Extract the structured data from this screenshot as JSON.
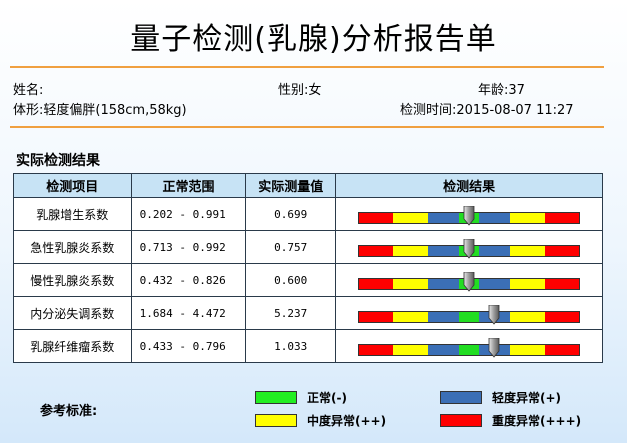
{
  "report": {
    "title": "量子检测(乳腺)分析报告单"
  },
  "patient": {
    "name_label": "姓名:",
    "name_value": "",
    "sex_label": "性别:",
    "sex_value": "女",
    "age_label": "年龄:",
    "age_value": "37",
    "body_label": "体形:",
    "body_value": "轻度偏胖(158cm,58kg)",
    "time_label": "检测时间:",
    "time_value": "2015-08-07 11:27"
  },
  "section": {
    "title": "实际检测结果"
  },
  "table": {
    "headers": [
      "检测项目",
      "正常范围",
      "实际测量值",
      "检测结果"
    ],
    "rows": [
      {
        "item": "乳腺增生系数",
        "range": "0.202 - 0.991",
        "value": "0.699",
        "level": 0.5
      },
      {
        "item": "急性乳腺炎系数",
        "range": "0.713 - 0.992",
        "value": "0.757",
        "level": 0.5
      },
      {
        "item": "慢性乳腺炎系数",
        "range": "0.432 - 0.826",
        "value": "0.600",
        "level": 0.5
      },
      {
        "item": "内分泌失调系数",
        "range": "1.684 - 4.472",
        "value": "5.237",
        "level": 0.615
      },
      {
        "item": "乳腺纤维瘤系数",
        "range": "0.433 - 0.796",
        "value": "1.033",
        "level": 0.615
      }
    ]
  },
  "scale": {
    "segments": [
      "#ff0000",
      "#ffff00",
      "#3b6fb6",
      "#22dd22",
      "#3b6fb6",
      "#ffff00",
      "#ff0000"
    ]
  },
  "legend": {
    "label": "参考标准:",
    "items": [
      {
        "name": "normal",
        "text": "正常(-)",
        "color": "#22ee22"
      },
      {
        "name": "mild",
        "text": "轻度异常(+)",
        "color": "#3b6fb6"
      },
      {
        "name": "moderate",
        "text": "中度异常(++)",
        "color": "#ffff00"
      },
      {
        "name": "severe",
        "text": "重度异常(+++)",
        "color": "#ff0000"
      }
    ]
  }
}
